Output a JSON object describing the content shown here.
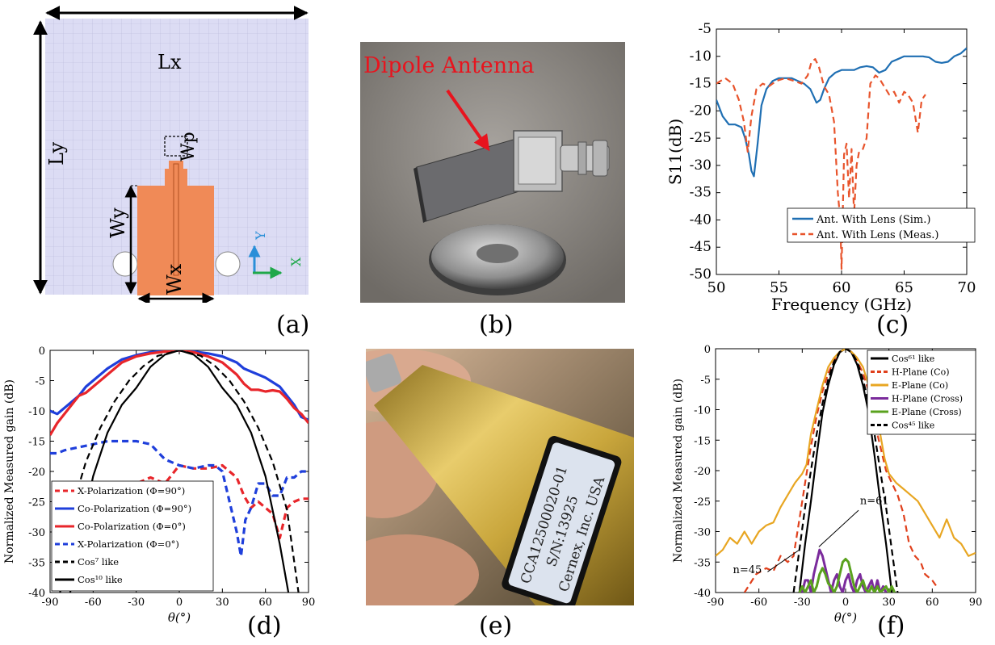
{
  "captions": {
    "a": "(a)",
    "b": "(b)",
    "c": "(c)",
    "d": "(d)",
    "e": "(e)",
    "f": "(f)"
  },
  "panel_a": {
    "lx": "Lx",
    "ly": "Ly",
    "wp": "Wp",
    "wy": "Wy",
    "wx": "Wx",
    "axis_y": "Y",
    "axis_x": "X",
    "colors": {
      "substrate": "#dcdcf4",
      "patch": "#f08a57",
      "axis_y": "#2a8fd8",
      "axis_x": "#1fa84a"
    }
  },
  "panel_b": {
    "label": "Dipole Antenna",
    "label_color": "#e8141e"
  },
  "panel_e": {
    "label_lines": [
      "CCA12500020-01",
      "S/N:13925",
      "Cernex, Inc. USA"
    ]
  },
  "chart_data": [
    {
      "panel": "c",
      "type": "line",
      "title": "",
      "xlabel": "Frequency (GHz)",
      "ylabel": "S11(dB)",
      "xlim": [
        50,
        70
      ],
      "ylim": [
        -50,
        -5
      ],
      "xticks": [
        "50",
        "55",
        "60",
        "65",
        "70"
      ],
      "yticks": [
        "-5",
        "-10",
        "-15",
        "-20",
        "-25",
        "-30",
        "-35",
        "-40",
        "-45",
        "-50"
      ],
      "legend_position": "bottom-right",
      "series": [
        {
          "name": "Ant. With Lens (Sim.)",
          "color": "#1f6fb3",
          "dash": "solid",
          "x": [
            50,
            50.5,
            51,
            51.5,
            52,
            52.3,
            52.6,
            52.8,
            53,
            53.3,
            53.6,
            54,
            54.5,
            55,
            55.5,
            56,
            56.5,
            57,
            57.5,
            58,
            58.3,
            58.6,
            59,
            59.5,
            60,
            60.5,
            61,
            61.5,
            62,
            62.5,
            63,
            63.5,
            64,
            64.5,
            65,
            65.5,
            66,
            66.5,
            67,
            67.5,
            68,
            68.5,
            69,
            69.5,
            70
          ],
          "y": [
            -18,
            -21,
            -22.5,
            -22.5,
            -23,
            -25,
            -28,
            -31,
            -32,
            -26,
            -19,
            -16,
            -14.5,
            -14,
            -14,
            -14,
            -14.5,
            -15,
            -16,
            -18.5,
            -18,
            -16,
            -14,
            -13,
            -12.5,
            -12.5,
            -12.5,
            -12,
            -11.8,
            -12,
            -13,
            -12.5,
            -11,
            -10.5,
            -10,
            -10,
            -10,
            -10,
            -10.2,
            -11,
            -11.2,
            -11,
            -10,
            -9.5,
            -8.5
          ]
        },
        {
          "name": "Ant. With Lens (Meas.)",
          "color": "#e8542c",
          "dash": "dashed",
          "x": [
            50,
            50.7,
            51.3,
            51.8,
            52.2,
            52.5,
            52.8,
            53.2,
            53.7,
            54.2,
            54.8,
            55.5,
            56.2,
            56.8,
            57.3,
            57.6,
            57.9,
            58.2,
            58.6,
            59,
            59.4,
            59.7,
            59.9,
            60,
            60.2,
            60.4,
            60.6,
            60.8,
            61,
            61.2,
            61.4,
            61.7,
            62,
            62.3,
            62.7,
            63,
            63.4,
            63.8,
            64.2,
            64.6,
            65,
            65.3,
            65.7,
            66.1,
            66.4,
            66.7
          ],
          "y": [
            -15,
            -14,
            -15,
            -18,
            -22,
            -27.5,
            -21,
            -16,
            -15,
            -15.5,
            -14.5,
            -14,
            -14.5,
            -15,
            -13.5,
            -11,
            -10.5,
            -12,
            -15.5,
            -17,
            -22,
            -35,
            -40,
            -49,
            -28,
            -26,
            -36,
            -27,
            -39,
            -30,
            -27.5,
            -27,
            -25,
            -15,
            -13.5,
            -14,
            -15.5,
            -17,
            -16.5,
            -18.5,
            -16.5,
            -17,
            -18.5,
            -24,
            -18,
            -17
          ]
        }
      ]
    },
    {
      "panel": "d",
      "type": "line",
      "title": "",
      "xlabel": "θ(°)",
      "ylabel": "Normalized Measured gain (dB)",
      "xlim": [
        -90,
        90
      ],
      "ylim": [
        -40,
        0
      ],
      "xticks": [
        "-90",
        "-60",
        "-30",
        "0",
        "30",
        "60",
        "90"
      ],
      "yticks": [
        "0",
        "-5",
        "-10",
        "-15",
        "-20",
        "-25",
        "-30",
        "-35",
        "-40"
      ],
      "legend_position": "bottom-left",
      "series": [
        {
          "name": "X-Polarization (Φ=90°)",
          "color": "#e8262b",
          "dash": "dashed",
          "x": [
            -40,
            -30,
            -20,
            -10,
            0,
            10,
            20,
            30,
            40,
            45,
            50,
            55,
            60,
            65,
            70,
            75,
            80,
            85,
            90
          ],
          "y": [
            -24,
            -22,
            -21,
            -22,
            -19,
            -19.5,
            -19.5,
            -19,
            -21,
            -24,
            -26,
            -25,
            -26,
            -27,
            -31,
            -26,
            -25,
            -24.5,
            -24.5
          ]
        },
        {
          "name": "Co-Polarization (Φ=90°)",
          "color": "#1f3fdb",
          "dash": "solid",
          "x": [
            -90,
            -85,
            -80,
            -75,
            -70,
            -65,
            -60,
            -50,
            -40,
            -30,
            -20,
            -10,
            0,
            10,
            20,
            30,
            40,
            45,
            50,
            55,
            60,
            70,
            80,
            85,
            90
          ],
          "y": [
            -10,
            -10.5,
            -9.5,
            -8.5,
            -7.5,
            -6,
            -5,
            -3,
            -1.5,
            -0.8,
            -0.3,
            -0.1,
            0,
            -0.2,
            -0.5,
            -1,
            -2,
            -3,
            -3.5,
            -4,
            -4.5,
            -6,
            -9,
            -11,
            -11.5
          ]
        },
        {
          "name": "Co-Polarization (Φ=0°)",
          "color": "#e8262b",
          "dash": "solid",
          "x": [
            -90,
            -85,
            -80,
            -75,
            -70,
            -65,
            -60,
            -50,
            -40,
            -30,
            -20,
            -10,
            0,
            10,
            20,
            30,
            40,
            45,
            50,
            55,
            60,
            65,
            70,
            75,
            80,
            85,
            90
          ],
          "y": [
            -14,
            -12,
            -10.5,
            -9,
            -7.5,
            -7,
            -6,
            -4,
            -2,
            -1,
            -0.5,
            -0.2,
            0,
            -0.3,
            -1,
            -2,
            -4,
            -5.5,
            -6.5,
            -6.5,
            -6.8,
            -6.6,
            -6.8,
            -8,
            -9.5,
            -10.5,
            -12
          ]
        },
        {
          "name": "X-Polarization (Φ=0°)",
          "color": "#1f3fdb",
          "dash": "dashed",
          "x": [
            -90,
            -85,
            -80,
            -70,
            -60,
            -50,
            -40,
            -30,
            -20,
            -10,
            0,
            10,
            20,
            25,
            30,
            40,
            43,
            46,
            50,
            55,
            60,
            65,
            70,
            75,
            80,
            85,
            90
          ],
          "y": [
            -17,
            -17,
            -16.5,
            -16,
            -15.5,
            -15,
            -15,
            -15,
            -15.5,
            -18,
            -19,
            -19.5,
            -19,
            -19,
            -20,
            -30,
            -34,
            -28,
            -26,
            -22,
            -22,
            -24,
            -24,
            -21,
            -21,
            -20,
            -20
          ]
        },
        {
          "name": "Cos⁷ like",
          "color": "#000000",
          "dash": "dashed",
          "x": [
            -83,
            -75,
            -65,
            -55,
            -45,
            -35,
            -25,
            -15,
            0,
            15,
            25,
            35,
            45,
            55,
            65,
            75,
            83
          ],
          "y": [
            -40,
            -26.3,
            -18.4,
            -12.8,
            -8.4,
            -5.0,
            -2.6,
            -0.9,
            0,
            -0.9,
            -2.6,
            -5.0,
            -8.4,
            -12.8,
            -18.4,
            -26.3,
            -40
          ]
        },
        {
          "name": "Cos¹⁰ like",
          "color": "#000000",
          "dash": "solid",
          "x": [
            -76,
            -70,
            -60,
            -50,
            -40,
            -30,
            -20,
            -10,
            0,
            10,
            20,
            30,
            40,
            50,
            60,
            70,
            76
          ],
          "y": [
            -40,
            -32,
            -20.8,
            -13.6,
            -9.0,
            -6.2,
            -2.7,
            -0.7,
            0,
            -0.7,
            -2.7,
            -6.2,
            -9.0,
            -13.6,
            -20.8,
            -32,
            -40
          ]
        }
      ]
    },
    {
      "panel": "f",
      "type": "line",
      "title": "",
      "xlabel": "θ(°)",
      "ylabel": "Normalized Measured gain (dB)",
      "xlim": [
        -90,
        90
      ],
      "ylim": [
        -40,
        0
      ],
      "xticks": [
        "-90",
        "-60",
        "-30",
        "0",
        "30",
        "60",
        "90"
      ],
      "yticks": [
        "0",
        "-5",
        "-10",
        "-15",
        "-20",
        "-25",
        "-30",
        "-35",
        "-40"
      ],
      "legend_position": "top-right",
      "annotations": [
        "n=61",
        "n=45"
      ],
      "series": [
        {
          "name": "Cos⁶¹ like",
          "color": "#000000",
          "dash": "solid",
          "x": [
            -32,
            -28,
            -24,
            -20,
            -16,
            -12,
            -8,
            -4,
            0,
            4,
            8,
            12,
            16,
            20,
            24,
            28,
            32
          ],
          "y": [
            -40,
            -32,
            -25,
            -17.5,
            -10.5,
            -6,
            -2.6,
            -0.6,
            0,
            -0.6,
            -2.6,
            -6,
            -10.5,
            -17.5,
            -25,
            -32,
            -40
          ]
        },
        {
          "name": "H-Plane (Co)",
          "color": "#e0401c",
          "dash": "dashed",
          "x": [
            -70,
            -62,
            -55,
            -50,
            -45,
            -40,
            -36,
            -32,
            -28,
            -24,
            -20,
            -16,
            -12,
            -8,
            -4,
            0,
            4,
            8,
            12,
            16,
            20,
            24,
            28,
            32,
            36,
            40,
            44,
            48,
            52,
            55,
            60,
            63
          ],
          "y": [
            -40,
            -37,
            -36,
            -36.5,
            -34,
            -35,
            -34,
            -28,
            -22,
            -16,
            -11,
            -7,
            -4,
            -2,
            -0.5,
            0,
            -0.5,
            -2,
            -4,
            -7,
            -12,
            -16,
            -20,
            -22,
            -24,
            -27,
            -32,
            -34,
            -35,
            -37,
            -38,
            -39
          ]
        },
        {
          "name": "E-Plane (Co)",
          "color": "#e8a622",
          "dash": "solid",
          "x": [
            -90,
            -85,
            -80,
            -75,
            -70,
            -65,
            -60,
            -55,
            -50,
            -45,
            -40,
            -35,
            -30,
            -27,
            -24,
            -20,
            -16,
            -12,
            -8,
            -4,
            0,
            4,
            8,
            12,
            16,
            20,
            24,
            27,
            30,
            35,
            40,
            45,
            50,
            55,
            60,
            65,
            70,
            75,
            80,
            85,
            90
          ],
          "y": [
            -34,
            -33,
            -31,
            -32,
            -30,
            -32,
            -30,
            -29,
            -28.5,
            -26,
            -24,
            -22,
            -20.5,
            -19,
            -14,
            -10,
            -6,
            -3,
            -1.5,
            -0.5,
            0,
            -0.5,
            -1.5,
            -3,
            -6,
            -10,
            -14,
            -18,
            -20.5,
            -22,
            -23,
            -24,
            -25,
            -27,
            -29,
            -31,
            -28,
            -31,
            -32,
            -34,
            -33.5
          ]
        },
        {
          "name": "H-Plane (Cross)",
          "color": "#7b2b9c",
          "dash": "solid",
          "x": [
            -30,
            -28,
            -26,
            -24,
            -22,
            -20,
            -18,
            -16,
            -14,
            -12,
            -10,
            -8,
            -6,
            -4,
            -2,
            0,
            2,
            4,
            6,
            8,
            10,
            12,
            14,
            16,
            18,
            20,
            22,
            24,
            26,
            28
          ],
          "y": [
            -40,
            -38,
            -38,
            -40,
            -37,
            -35,
            -33,
            -34,
            -36,
            -38,
            -40,
            -38,
            -37,
            -39,
            -40,
            -38,
            -37,
            -39,
            -40,
            -38,
            -37,
            -39,
            -40,
            -39,
            -38,
            -40,
            -38,
            -40,
            -39,
            -40
          ]
        },
        {
          "name": "E-Plane (Cross)",
          "color": "#5aa21e",
          "dash": "solid",
          "x": [
            -32,
            -30,
            -28,
            -26,
            -24,
            -22,
            -20,
            -18,
            -16,
            -14,
            -12,
            -10,
            -8,
            -6,
            -4,
            -2,
            0,
            2,
            4,
            6,
            8,
            10,
            12,
            14,
            16,
            18,
            20,
            22,
            24,
            26,
            28,
            30,
            32,
            34
          ],
          "y": [
            -40,
            -39,
            -40,
            -39,
            -38,
            -40,
            -39,
            -37,
            -36,
            -37,
            -38.5,
            -39,
            -40,
            -39,
            -37,
            -35,
            -34.5,
            -35,
            -37,
            -39,
            -40,
            -39,
            -38,
            -39.5,
            -40,
            -39,
            -40,
            -39,
            -40,
            -39.5,
            -39,
            -40,
            -39,
            -40
          ]
        },
        {
          "name": "Cos⁴⁵ like",
          "color": "#000000",
          "dash": "dashed",
          "x": [
            -36,
            -32,
            -28,
            -24,
            -20,
            -16,
            -12,
            -8,
            -4,
            0,
            4,
            8,
            12,
            16,
            20,
            24,
            28,
            32,
            36
          ],
          "y": [
            -40,
            -33,
            -26,
            -20,
            -14,
            -9,
            -5,
            -2.1,
            -0.5,
            0,
            -0.5,
            -2.1,
            -5,
            -9,
            -14,
            -20,
            -26,
            -33,
            -40
          ]
        }
      ]
    }
  ]
}
